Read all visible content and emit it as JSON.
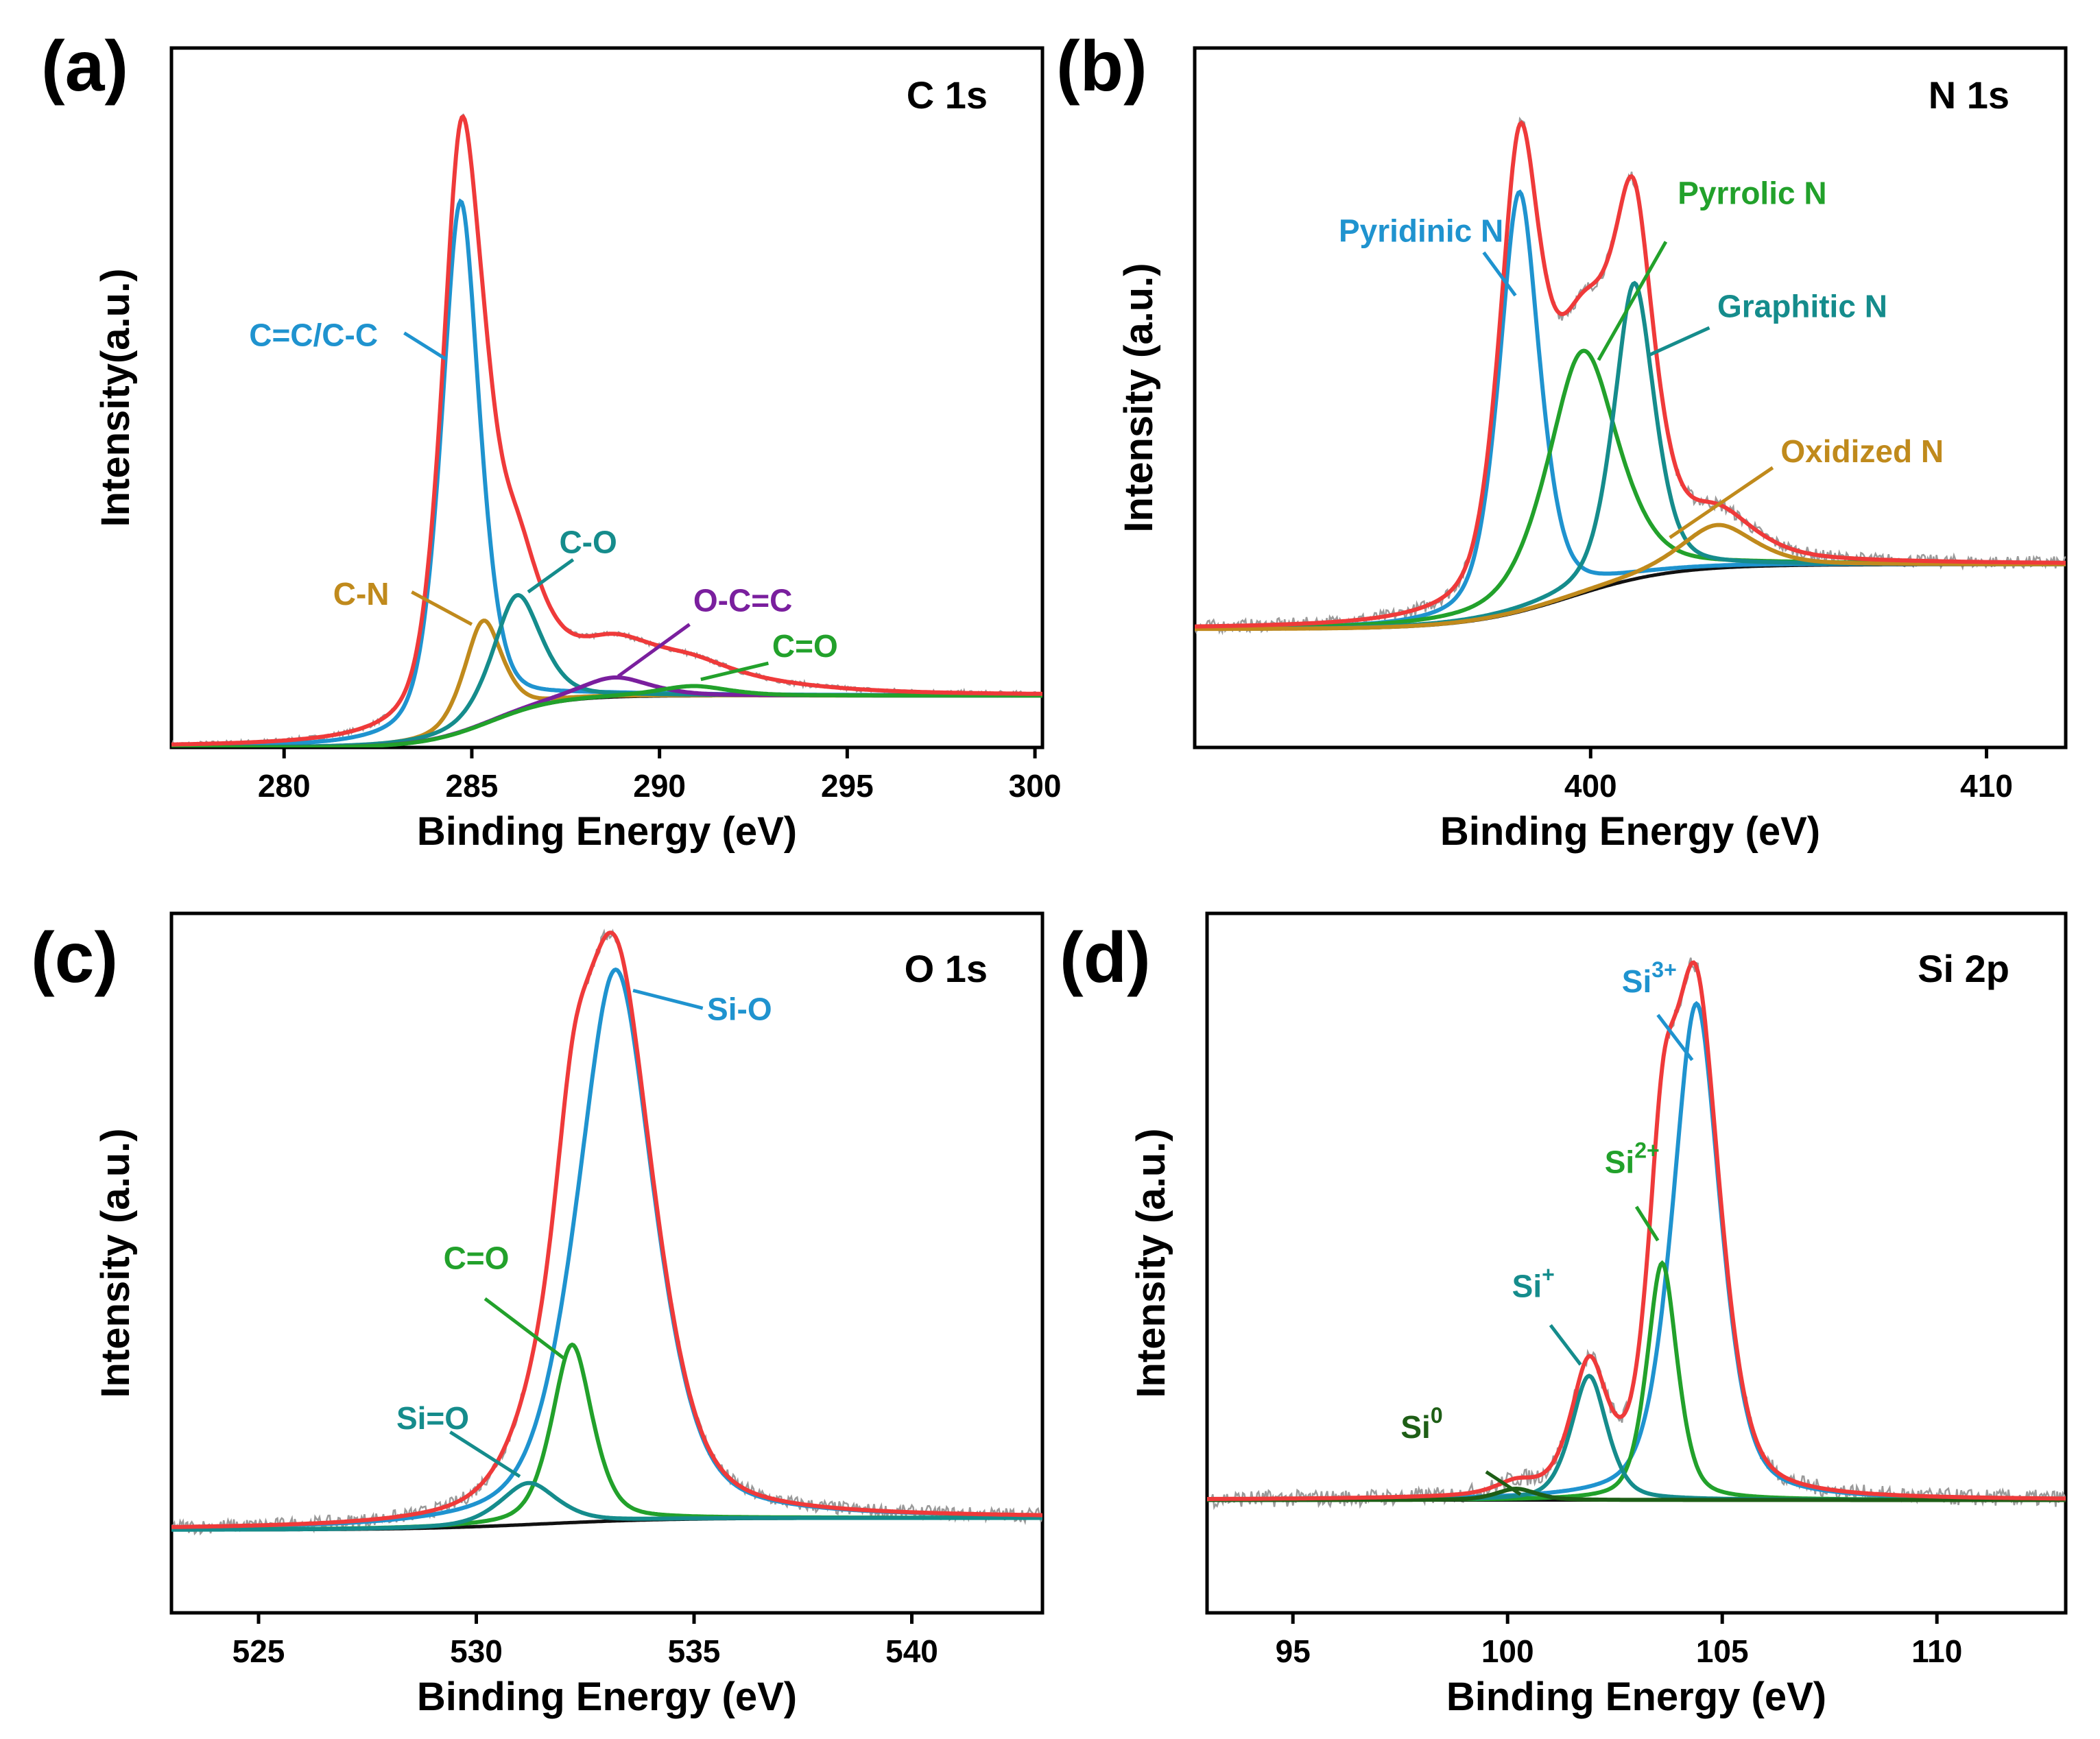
{
  "colors": {
    "envelope": "#EF3A3A",
    "raw": "#9A9A9A",
    "background": "#111111",
    "blue": "#1F93CF",
    "teal": "#158C8C",
    "green": "#22A12B",
    "brown": "#C08A1C",
    "purple": "#7A1F9E",
    "darkgreen": "#1E5E16"
  },
  "chart_data": [
    {
      "type": "line",
      "panel": "(a)",
      "title": "C 1s",
      "xlabel": "Binding Energy (eV)",
      "ylabel": "Intensity(a.u.)",
      "xlim": [
        277,
        300.2
      ],
      "ylim": [
        0,
        1.08
      ],
      "xticks": [
        280,
        285,
        290,
        295,
        300
      ],
      "xtick_labels": [
        "280",
        "285",
        "290",
        "295",
        "300"
      ],
      "background": {
        "low": 0.0,
        "high": 0.08,
        "center": 285.5,
        "width": 0.9
      },
      "peaks": [
        {
          "name": "C=C/C-C",
          "center": 284.7,
          "height": 0.82,
          "width": 0.55,
          "color": "blue",
          "label_x": 282.5,
          "label_y": 0.62,
          "anchor": "end",
          "leader": [
            [
              283.2,
              0.64
            ],
            [
              284.3,
              0.6
            ]
          ]
        },
        {
          "name": "C-N",
          "center": 285.3,
          "height": 0.16,
          "width": 0.55,
          "color": "brown",
          "label_x": 282.8,
          "label_y": 0.22,
          "anchor": "end",
          "leader": [
            [
              285.0,
              0.19
            ],
            [
              283.4,
              0.24
            ]
          ]
        },
        {
          "name": "C-O",
          "center": 286.2,
          "height": 0.18,
          "width": 0.7,
          "color": "teal",
          "label_x": 288.1,
          "label_y": 0.3,
          "anchor": "middle",
          "leader": [
            [
              286.5,
              0.24
            ],
            [
              287.7,
              0.29
            ]
          ]
        },
        {
          "name": "O-C=C",
          "center": 288.8,
          "height": 0.03,
          "width": 1.0,
          "color": "purple",
          "label_x": 290.9,
          "label_y": 0.21,
          "anchor": "start",
          "leader": [
            [
              288.9,
              0.11
            ],
            [
              290.8,
              0.19
            ]
          ]
        },
        {
          "name": "C=O",
          "center": 290.9,
          "height": 0.015,
          "width": 1.0,
          "color": "green",
          "label_x": 293.0,
          "label_y": 0.14,
          "anchor": "start",
          "leader": [
            [
              291.1,
              0.105
            ],
            [
              292.9,
              0.13
            ]
          ]
        }
      ],
      "envelope_extra": [
        {
          "center": 289,
          "height": 0.05,
          "width": 3.0
        }
      ],
      "noise_amp": 0.004
    },
    {
      "type": "line",
      "panel": "(b)",
      "title": "N 1s",
      "xlabel": "Binding Energy (eV)",
      "ylabel": "Intensity (a.u.)",
      "xlim": [
        390,
        412
      ],
      "ylim": [
        -0.22,
        1.08
      ],
      "xticks": [
        400,
        410
      ],
      "xtick_labels": [
        "400",
        "410"
      ],
      "background": {
        "low": 0.0,
        "high": 0.12,
        "center": 399.5,
        "width": 1.3
      },
      "peaks": [
        {
          "name": "Pyridinic N",
          "center": 398.2,
          "height": 0.78,
          "width": 0.55,
          "color": "blue",
          "label_x": 397.8,
          "label_y": 0.72,
          "anchor": "end",
          "leader": [
            [
              397.3,
              0.7
            ],
            [
              398.1,
              0.62
            ]
          ]
        },
        {
          "name": "Pyrrolic N",
          "center": 399.8,
          "height": 0.45,
          "width": 0.95,
          "color": "green",
          "label_x": 402.2,
          "label_y": 0.79,
          "anchor": "start",
          "leader": [
            [
              400.2,
              0.5
            ],
            [
              401.9,
              0.72
            ]
          ]
        },
        {
          "name": "Graphitic N",
          "center": 401.1,
          "height": 0.55,
          "width": 0.55,
          "color": "teal",
          "label_x": 403.2,
          "label_y": 0.58,
          "anchor": "start",
          "leader": [
            [
              401.5,
              0.51
            ],
            [
              403.0,
              0.56
            ]
          ]
        },
        {
          "name": "Oxidized N",
          "center": 403.2,
          "height": 0.08,
          "width": 1.0,
          "color": "brown",
          "label_x": 404.8,
          "label_y": 0.31,
          "anchor": "start",
          "leader": [
            [
              402.0,
              0.17
            ],
            [
              404.6,
              0.3
            ]
          ]
        }
      ],
      "envelope_extra": [],
      "noise_amp": 0.012
    },
    {
      "type": "line",
      "panel": "(c)",
      "title": "O 1s",
      "xlabel": "Binding Energy (eV)",
      "ylabel": "Intensity (a.u.)",
      "xlim": [
        523,
        543
      ],
      "ylim": [
        -0.14,
        1.04
      ],
      "xticks": [
        525,
        530,
        535,
        540
      ],
      "xtick_labels": [
        "525",
        "530",
        "535",
        "540"
      ],
      "background": {
        "low": 0.0,
        "high": 0.02,
        "center": 531.5,
        "width": 1.5
      },
      "peaks": [
        {
          "name": "Si-O",
          "center": 533.2,
          "height": 0.93,
          "width": 0.95,
          "color": "blue",
          "label_x": 535.3,
          "label_y": 0.86,
          "anchor": "start",
          "leader": [
            [
              533.6,
              0.91
            ],
            [
              535.2,
              0.88
            ]
          ]
        },
        {
          "name": "C=O",
          "center": 532.2,
          "height": 0.3,
          "width": 0.5,
          "color": "green",
          "label_x": 530.0,
          "label_y": 0.44,
          "anchor": "middle",
          "leader": [
            [
              530.2,
              0.39
            ],
            [
              532.0,
              0.29
            ]
          ]
        },
        {
          "name": "Si=O",
          "center": 531.2,
          "height": 0.07,
          "width": 0.7,
          "color": "teal",
          "label_x": 529.0,
          "label_y": 0.17,
          "anchor": "middle",
          "leader": [
            [
              529.4,
              0.165
            ],
            [
              531.0,
              0.09
            ]
          ]
        }
      ],
      "envelope_extra": [],
      "noise_amp": 0.012
    },
    {
      "type": "line",
      "panel": "(d)",
      "title": "Si 2p",
      "xlabel": "Binding Energy (eV)",
      "ylabel": "Intensity (a.u.)",
      "xlim": [
        93,
        113
      ],
      "ylim": [
        -0.2,
        1.04
      ],
      "xticks": [
        95,
        100,
        105,
        110
      ],
      "xtick_labels": [
        "95",
        "100",
        "105",
        "110"
      ],
      "background": {
        "low": 0.0,
        "high": 0.0,
        "center": 100,
        "width": 1.0
      },
      "peaks": [
        {
          "name": "Si",
          "sup": "3+",
          "center": 104.4,
          "height": 0.88,
          "width": 0.6,
          "color": "blue",
          "label_x": 103.3,
          "label_y": 0.9,
          "anchor": "middle",
          "leader": [
            [
              103.5,
              0.86
            ],
            [
              104.3,
              0.78
            ]
          ]
        },
        {
          "name": "Si",
          "sup": "2+",
          "center": 103.6,
          "height": 0.42,
          "width": 0.38,
          "color": "green",
          "label_x": 102.9,
          "label_y": 0.58,
          "anchor": "middle",
          "leader": [
            [
              103.0,
              0.52
            ],
            [
              103.5,
              0.46
            ]
          ]
        },
        {
          "name": "Si",
          "sup": "+",
          "center": 101.9,
          "height": 0.22,
          "width": 0.45,
          "color": "teal",
          "label_x": 100.6,
          "label_y": 0.36,
          "anchor": "middle",
          "leader": [
            [
              101.0,
              0.31
            ],
            [
              101.7,
              0.24
            ]
          ]
        },
        {
          "name": "Si",
          "sup": "0",
          "center": 100.2,
          "height": 0.02,
          "width": 0.5,
          "color": "darkgreen",
          "label_x": 98.0,
          "label_y": 0.11,
          "anchor": "middle",
          "leader": [
            [
              99.5,
              0.05
            ],
            [
              100.3,
              0.01
            ]
          ]
        }
      ],
      "envelope_extra": [],
      "noise_amp": 0.015
    }
  ]
}
